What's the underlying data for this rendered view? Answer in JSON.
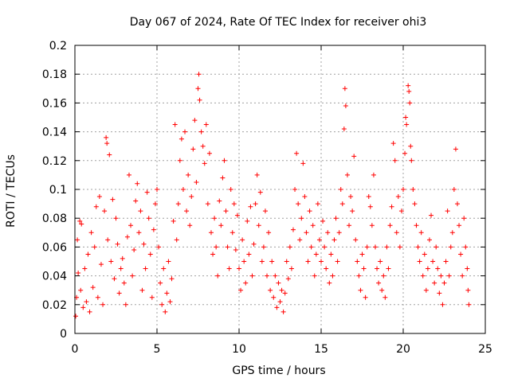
{
  "chart_data": {
    "type": "scatter",
    "title": "Day 067 of 2024, Rate Of TEC Index for receiver ohi3",
    "xlabel": "GPS time / hours",
    "ylabel": "ROTI / TECUs",
    "xlim": [
      0,
      25
    ],
    "ylim": [
      0,
      0.2
    ],
    "grid": true,
    "xticks": [
      0,
      5,
      10,
      15,
      20,
      25
    ],
    "xtick_labels": [
      "0",
      "5",
      "10",
      "15",
      "20",
      "25"
    ],
    "yticks": [
      0,
      0.02,
      0.04,
      0.06,
      0.08,
      0.1,
      0.12,
      0.14,
      0.16,
      0.18,
      0.2
    ],
    "ytick_labels": [
      "0",
      "0.02",
      "0.04",
      "0.06",
      "0.08",
      "0.1",
      "0.12",
      "0.14",
      "0.16",
      "0.18",
      "0.2"
    ],
    "marker": "plus",
    "color": "#ff0000",
    "series": [
      {
        "points": [
          [
            0.05,
            0.012
          ],
          [
            0.1,
            0.025
          ],
          [
            0.15,
            0.065
          ],
          [
            0.2,
            0.042
          ],
          [
            0.3,
            0.078
          ],
          [
            0.35,
            0.03
          ],
          [
            0.4,
            0.076
          ],
          [
            0.5,
            0.018
          ],
          [
            0.6,
            0.045
          ],
          [
            0.7,
            0.022
          ],
          [
            0.8,
            0.055
          ],
          [
            0.9,
            0.015
          ],
          [
            1.0,
            0.07
          ],
          [
            1.1,
            0.032
          ],
          [
            1.2,
            0.06
          ],
          [
            1.3,
            0.088
          ],
          [
            1.4,
            0.025
          ],
          [
            1.5,
            0.095
          ],
          [
            1.6,
            0.048
          ],
          [
            1.7,
            0.02
          ],
          [
            1.8,
            0.085
          ],
          [
            1.9,
            0.136
          ],
          [
            1.95,
            0.132
          ],
          [
            2.0,
            0.065
          ],
          [
            2.1,
            0.124
          ],
          [
            2.2,
            0.05
          ],
          [
            2.3,
            0.093
          ],
          [
            2.4,
            0.038
          ],
          [
            2.5,
            0.08
          ],
          [
            2.6,
            0.062
          ],
          [
            2.7,
            0.028
          ],
          [
            2.8,
            0.045
          ],
          [
            2.9,
            0.052
          ],
          [
            3.0,
            0.035
          ],
          [
            3.1,
            0.02
          ],
          [
            3.2,
            0.067
          ],
          [
            3.3,
            0.11
          ],
          [
            3.4,
            0.075
          ],
          [
            3.5,
            0.04
          ],
          [
            3.6,
            0.058
          ],
          [
            3.7,
            0.092
          ],
          [
            3.8,
            0.104
          ],
          [
            3.9,
            0.07
          ],
          [
            4.0,
            0.085
          ],
          [
            4.1,
            0.03
          ],
          [
            4.2,
            0.062
          ],
          [
            4.3,
            0.045
          ],
          [
            4.4,
            0.098
          ],
          [
            4.5,
            0.08
          ],
          [
            4.6,
            0.055
          ],
          [
            4.7,
            0.025
          ],
          [
            4.8,
            0.072
          ],
          [
            4.9,
            0.09
          ],
          [
            5.0,
            0.1
          ],
          [
            5.1,
            0.06
          ],
          [
            5.2,
            0.035
          ],
          [
            5.3,
            0.02
          ],
          [
            5.4,
            0.045
          ],
          [
            5.5,
            0.015
          ],
          [
            5.6,
            0.028
          ],
          [
            5.7,
            0.05
          ],
          [
            5.8,
            0.022
          ],
          [
            5.9,
            0.038
          ],
          [
            6.0,
            0.078
          ],
          [
            6.1,
            0.145
          ],
          [
            6.2,
            0.065
          ],
          [
            6.3,
            0.09
          ],
          [
            6.4,
            0.12
          ],
          [
            6.5,
            0.135
          ],
          [
            6.6,
            0.1
          ],
          [
            6.7,
            0.14
          ],
          [
            6.8,
            0.085
          ],
          [
            6.9,
            0.11
          ],
          [
            7.0,
            0.075
          ],
          [
            7.1,
            0.095
          ],
          [
            7.2,
            0.128
          ],
          [
            7.3,
            0.148
          ],
          [
            7.4,
            0.105
          ],
          [
            7.5,
            0.17
          ],
          [
            7.55,
            0.18
          ],
          [
            7.6,
            0.162
          ],
          [
            7.7,
            0.14
          ],
          [
            7.8,
            0.13
          ],
          [
            7.9,
            0.118
          ],
          [
            8.0,
            0.145
          ],
          [
            8.1,
            0.09
          ],
          [
            8.2,
            0.125
          ],
          [
            8.3,
            0.07
          ],
          [
            8.4,
            0.055
          ],
          [
            8.5,
            0.08
          ],
          [
            8.6,
            0.06
          ],
          [
            8.7,
            0.04
          ],
          [
            8.8,
            0.092
          ],
          [
            8.9,
            0.075
          ],
          [
            9.0,
            0.108
          ],
          [
            9.1,
            0.12
          ],
          [
            9.2,
            0.085
          ],
          [
            9.3,
            0.06
          ],
          [
            9.4,
            0.045
          ],
          [
            9.5,
            0.1
          ],
          [
            9.6,
            0.07
          ],
          [
            9.7,
            0.09
          ],
          [
            9.8,
            0.058
          ],
          [
            9.9,
            0.082
          ],
          [
            10.0,
            0.045
          ],
          [
            10.1,
            0.03
          ],
          [
            10.2,
            0.065
          ],
          [
            10.3,
            0.05
          ],
          [
            10.4,
            0.035
          ],
          [
            10.5,
            0.078
          ],
          [
            10.6,
            0.055
          ],
          [
            10.7,
            0.088
          ],
          [
            10.8,
            0.04
          ],
          [
            10.9,
            0.062
          ],
          [
            11.0,
            0.09
          ],
          [
            11.1,
            0.11
          ],
          [
            11.2,
            0.075
          ],
          [
            11.3,
            0.098
          ],
          [
            11.4,
            0.05
          ],
          [
            11.5,
            0.06
          ],
          [
            11.6,
            0.085
          ],
          [
            11.7,
            0.04
          ],
          [
            11.8,
            0.07
          ],
          [
            11.9,
            0.03
          ],
          [
            12.0,
            0.05
          ],
          [
            12.1,
            0.025
          ],
          [
            12.2,
            0.04
          ],
          [
            12.3,
            0.018
          ],
          [
            12.4,
            0.035
          ],
          [
            12.5,
            0.022
          ],
          [
            12.6,
            0.03
          ],
          [
            12.7,
            0.015
          ],
          [
            12.8,
            0.028
          ],
          [
            12.9,
            0.05
          ],
          [
            13.0,
            0.038
          ],
          [
            13.1,
            0.06
          ],
          [
            13.2,
            0.045
          ],
          [
            13.3,
            0.072
          ],
          [
            13.4,
            0.1
          ],
          [
            13.5,
            0.125
          ],
          [
            13.6,
            0.09
          ],
          [
            13.7,
            0.065
          ],
          [
            13.8,
            0.08
          ],
          [
            13.9,
            0.118
          ],
          [
            14.0,
            0.095
          ],
          [
            14.1,
            0.07
          ],
          [
            14.2,
            0.05
          ],
          [
            14.3,
            0.085
          ],
          [
            14.4,
            0.06
          ],
          [
            14.5,
            0.075
          ],
          [
            14.6,
            0.04
          ],
          [
            14.7,
            0.055
          ],
          [
            14.8,
            0.09
          ],
          [
            14.9,
            0.065
          ],
          [
            15.0,
            0.05
          ],
          [
            15.1,
            0.078
          ],
          [
            15.2,
            0.06
          ],
          [
            15.3,
            0.045
          ],
          [
            15.4,
            0.07
          ],
          [
            15.5,
            0.035
          ],
          [
            15.6,
            0.055
          ],
          [
            15.7,
            0.04
          ],
          [
            15.8,
            0.065
          ],
          [
            15.9,
            0.08
          ],
          [
            16.0,
            0.05
          ],
          [
            16.1,
            0.07
          ],
          [
            16.2,
            0.1
          ],
          [
            16.3,
            0.09
          ],
          [
            16.4,
            0.142
          ],
          [
            16.45,
            0.17
          ],
          [
            16.5,
            0.158
          ],
          [
            16.6,
            0.11
          ],
          [
            16.7,
            0.075
          ],
          [
            16.8,
            0.095
          ],
          [
            16.9,
            0.085
          ],
          [
            17.0,
            0.123
          ],
          [
            17.1,
            0.065
          ],
          [
            17.2,
            0.05
          ],
          [
            17.3,
            0.04
          ],
          [
            17.4,
            0.03
          ],
          [
            17.5,
            0.055
          ],
          [
            17.6,
            0.045
          ],
          [
            17.7,
            0.025
          ],
          [
            17.8,
            0.06
          ],
          [
            17.9,
            0.095
          ],
          [
            18.0,
            0.088
          ],
          [
            18.1,
            0.075
          ],
          [
            18.2,
            0.11
          ],
          [
            18.3,
            0.06
          ],
          [
            18.4,
            0.045
          ],
          [
            18.5,
            0.035
          ],
          [
            18.6,
            0.05
          ],
          [
            18.7,
            0.03
          ],
          [
            18.8,
            0.04
          ],
          [
            18.9,
            0.025
          ],
          [
            19.0,
            0.06
          ],
          [
            19.1,
            0.045
          ],
          [
            19.2,
            0.075
          ],
          [
            19.3,
            0.088
          ],
          [
            19.4,
            0.132
          ],
          [
            19.5,
            0.12
          ],
          [
            19.6,
            0.07
          ],
          [
            19.7,
            0.095
          ],
          [
            19.8,
            0.06
          ],
          [
            19.9,
            0.085
          ],
          [
            20.0,
            0.1
          ],
          [
            20.1,
            0.125
          ],
          [
            20.15,
            0.15
          ],
          [
            20.2,
            0.145
          ],
          [
            20.3,
            0.172
          ],
          [
            20.35,
            0.168
          ],
          [
            20.4,
            0.16
          ],
          [
            20.45,
            0.13
          ],
          [
            20.5,
            0.12
          ],
          [
            20.6,
            0.1
          ],
          [
            20.7,
            0.09
          ],
          [
            20.8,
            0.075
          ],
          [
            20.9,
            0.06
          ],
          [
            21.0,
            0.05
          ],
          [
            21.1,
            0.07
          ],
          [
            21.2,
            0.04
          ],
          [
            21.3,
            0.055
          ],
          [
            21.4,
            0.03
          ],
          [
            21.5,
            0.045
          ],
          [
            21.6,
            0.065
          ],
          [
            21.7,
            0.082
          ],
          [
            21.8,
            0.05
          ],
          [
            21.9,
            0.035
          ],
          [
            22.0,
            0.06
          ],
          [
            22.1,
            0.045
          ],
          [
            22.2,
            0.028
          ],
          [
            22.3,
            0.04
          ],
          [
            22.4,
            0.02
          ],
          [
            22.5,
            0.035
          ],
          [
            22.6,
            0.05
          ],
          [
            22.7,
            0.085
          ],
          [
            22.8,
            0.04
          ],
          [
            22.9,
            0.06
          ],
          [
            23.0,
            0.07
          ],
          [
            23.1,
            0.1
          ],
          [
            23.2,
            0.128
          ],
          [
            23.3,
            0.09
          ],
          [
            23.4,
            0.075
          ],
          [
            23.5,
            0.055
          ],
          [
            23.6,
            0.04
          ],
          [
            23.7,
            0.08
          ],
          [
            23.8,
            0.06
          ],
          [
            23.9,
            0.045
          ],
          [
            23.95,
            0.03
          ],
          [
            24.0,
            0.02
          ]
        ]
      }
    ]
  }
}
